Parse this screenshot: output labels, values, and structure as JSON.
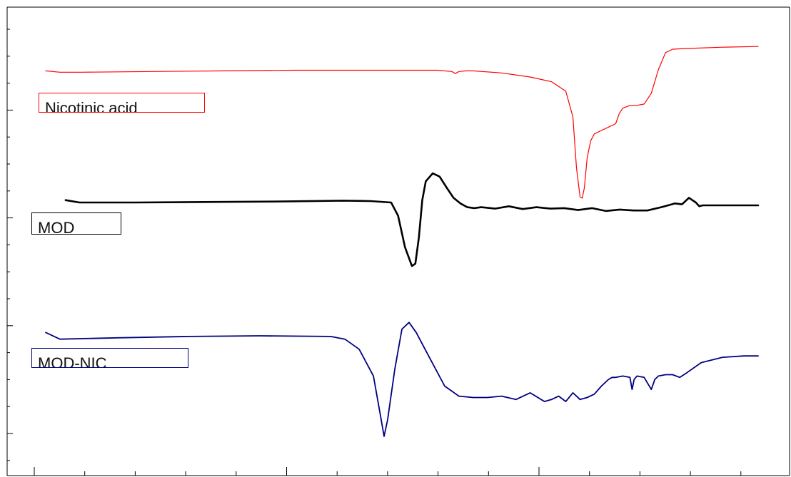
{
  "chart_data": {
    "type": "line",
    "title": "",
    "xlabel": "",
    "ylabel": "",
    "grid": false,
    "legend": [
      {
        "label": "Nicotinic acid",
        "color": "#ff0000"
      },
      {
        "label": "MOD",
        "color": "#000000"
      },
      {
        "label": "MOD-NIC",
        "color": "#000080"
      }
    ],
    "ticks": {
      "x_major_count": 3,
      "x_minor_count": 15,
      "y_major_count": 5,
      "y_minor_count": 17
    },
    "series": [
      {
        "name": "Nicotinic acid",
        "color": "#ff0000",
        "x": [
          0.0,
          0.02,
          0.05,
          0.15,
          0.25,
          0.35,
          0.45,
          0.5,
          0.55,
          0.57,
          0.575,
          0.58,
          0.59,
          0.6,
          0.64,
          0.68,
          0.71,
          0.73,
          0.74,
          0.745,
          0.75,
          0.753,
          0.756,
          0.76,
          0.765,
          0.77,
          0.78,
          0.79,
          0.8,
          0.805,
          0.81,
          0.82,
          0.83,
          0.84,
          0.85,
          0.86,
          0.87,
          0.88,
          0.9,
          0.95,
          1.0
        ],
        "y": [
          0.88,
          0.86,
          0.86,
          0.87,
          0.88,
          0.89,
          0.89,
          0.89,
          0.89,
          0.87,
          0.84,
          0.87,
          0.88,
          0.88,
          0.85,
          0.79,
          0.72,
          0.58,
          0.2,
          -0.55,
          -0.98,
          -1.0,
          -0.85,
          -0.4,
          -0.15,
          -0.05,
          0.0,
          0.05,
          0.1,
          0.25,
          0.33,
          0.37,
          0.37,
          0.39,
          0.55,
          0.9,
          1.15,
          1.2,
          1.21,
          1.23,
          1.24
        ]
      },
      {
        "name": "MOD",
        "color": "#000000",
        "x": [
          0.0,
          0.02,
          0.1,
          0.2,
          0.3,
          0.4,
          0.44,
          0.47,
          0.48,
          0.49,
          0.5,
          0.505,
          0.51,
          0.515,
          0.52,
          0.53,
          0.54,
          0.55,
          0.56,
          0.57,
          0.58,
          0.59,
          0.6,
          0.62,
          0.64,
          0.66,
          0.68,
          0.7,
          0.72,
          0.74,
          0.76,
          0.78,
          0.8,
          0.82,
          0.84,
          0.86,
          0.87,
          0.88,
          0.89,
          0.9,
          0.91,
          0.915,
          0.92,
          0.94,
          0.96,
          1.0
        ],
        "y": [
          0.05,
          0.0,
          0.0,
          0.01,
          0.02,
          0.04,
          0.03,
          0.0,
          -0.28,
          -0.95,
          -1.35,
          -1.3,
          -0.75,
          0.05,
          0.45,
          0.62,
          0.55,
          0.32,
          0.1,
          -0.02,
          -0.1,
          -0.12,
          -0.1,
          -0.13,
          -0.08,
          -0.14,
          -0.1,
          -0.13,
          -0.12,
          -0.16,
          -0.12,
          -0.18,
          -0.15,
          -0.17,
          -0.17,
          -0.1,
          -0.06,
          -0.02,
          -0.04,
          0.1,
          0.0,
          -0.08,
          -0.06,
          -0.06,
          -0.06,
          -0.06
        ]
      },
      {
        "name": "MOD-NIC",
        "color": "#000080",
        "x": [
          0.0,
          0.02,
          0.1,
          0.2,
          0.3,
          0.4,
          0.42,
          0.44,
          0.46,
          0.47,
          0.475,
          0.48,
          0.49,
          0.5,
          0.51,
          0.52,
          0.54,
          0.56,
          0.58,
          0.6,
          0.62,
          0.64,
          0.66,
          0.68,
          0.7,
          0.71,
          0.72,
          0.73,
          0.74,
          0.75,
          0.76,
          0.77,
          0.78,
          0.79,
          0.795,
          0.8,
          0.81,
          0.82,
          0.823,
          0.826,
          0.83,
          0.84,
          0.85,
          0.855,
          0.86,
          0.87,
          0.88,
          0.89,
          0.9,
          0.92,
          0.95,
          0.98,
          1.0
        ],
        "y": [
          1.55,
          1.45,
          1.47,
          1.49,
          1.5,
          1.49,
          1.45,
          1.3,
          0.9,
          0.3,
          0.0,
          0.25,
          1.0,
          1.6,
          1.7,
          1.55,
          1.15,
          0.75,
          0.6,
          0.58,
          0.58,
          0.6,
          0.55,
          0.65,
          0.52,
          0.55,
          0.6,
          0.52,
          0.65,
          0.55,
          0.58,
          0.63,
          0.75,
          0.85,
          0.88,
          0.88,
          0.9,
          0.88,
          0.7,
          0.85,
          0.9,
          0.88,
          0.7,
          0.85,
          0.9,
          0.92,
          0.92,
          0.88,
          0.95,
          1.1,
          1.18,
          1.2,
          1.2
        ]
      }
    ]
  }
}
